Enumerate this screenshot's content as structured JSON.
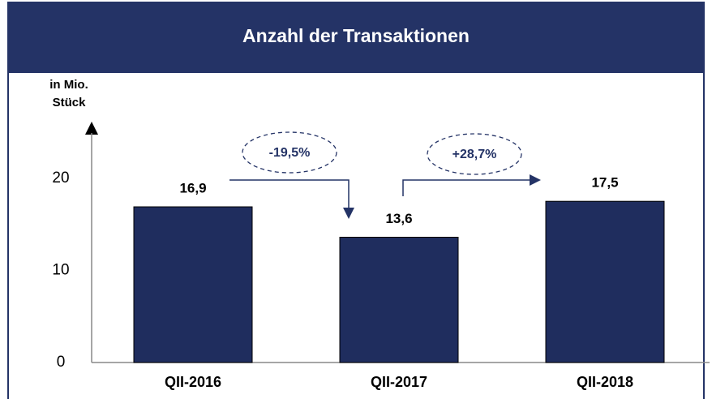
{
  "chart_data": {
    "type": "bar",
    "title": "Anzahl der Transaktionen",
    "ylabel": [
      "in Mio.",
      "Stück"
    ],
    "categories": [
      "QII-2016",
      "QII-2017",
      "QII-2018"
    ],
    "values": [
      16.9,
      13.6,
      17.5
    ],
    "value_labels": [
      "16,9",
      "13,6",
      "17,5"
    ],
    "color": "#1f2d5e",
    "ylim": [
      0,
      25
    ],
    "yticks": [
      0,
      10,
      20
    ],
    "grid": false,
    "annotations": [
      "-19,5%",
      "+28,7%"
    ]
  }
}
